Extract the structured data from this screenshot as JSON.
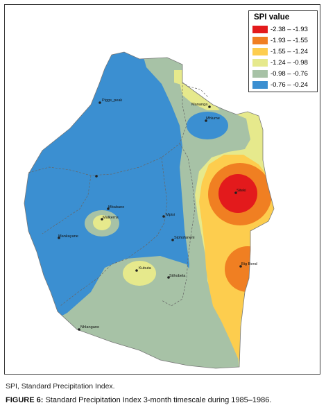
{
  "legend": {
    "title": "SPI value",
    "items": [
      {
        "label": "-2.38 – -1.93",
        "color": "#e31a1c"
      },
      {
        "label": "-1.93 – -1.55",
        "color": "#f07f22"
      },
      {
        "label": "-1.55 – -1.24",
        "color": "#fdcd4e"
      },
      {
        "label": "-1.24 – -0.98",
        "color": "#e6e98c"
      },
      {
        "label": "-0.98 – -0.76",
        "color": "#a7c2a6"
      },
      {
        "label": "-0.76 – -0.24",
        "color": "#3b8fd1"
      }
    ]
  },
  "places": [
    {
      "name": "Piggs_peak"
    },
    {
      "name": "Mananga"
    },
    {
      "name": "Mhlume"
    },
    {
      "name": "Siteki"
    },
    {
      "name": "Mbabane"
    },
    {
      "name": "Malkerns"
    },
    {
      "name": "Mpisi"
    },
    {
      "name": "Mankayane"
    },
    {
      "name": "Siphofaneni"
    },
    {
      "name": "Big Bend"
    },
    {
      "name": "Kubuta"
    },
    {
      "name": "Sithobela"
    },
    {
      "name": "Nhlangano"
    }
  ],
  "captions": {
    "abbreviation": "SPI, Standard Precipitation Index.",
    "figure_label": "FIGURE 6:",
    "figure_text": " Standard Precipitation Index 3-month timescale during 1985–1986."
  }
}
